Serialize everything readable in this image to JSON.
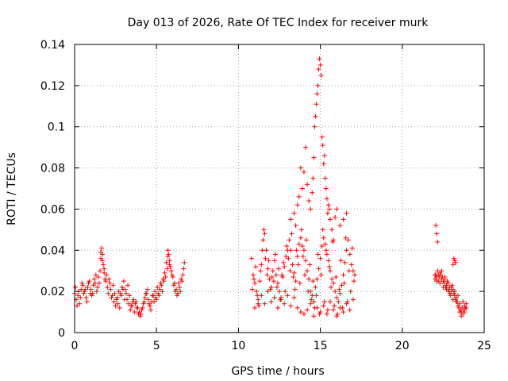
{
  "chart_data": {
    "type": "scatter",
    "title": "Day 013 of 2026, Rate Of TEC Index for receiver murk",
    "xlabel": "GPS time / hours",
    "ylabel": "ROTI / TECUs",
    "xlim": [
      0,
      25
    ],
    "ylim": [
      0,
      0.14
    ],
    "xticks": [
      0,
      5,
      10,
      15,
      20,
      25
    ],
    "yticks": [
      0,
      0.02,
      0.04,
      0.06,
      0.08,
      0.1,
      0.12,
      0.14
    ],
    "xtick_labels": [
      "0",
      "5",
      "10",
      "15",
      "20",
      "25"
    ],
    "ytick_labels": [
      "0",
      "0.02",
      "0.04",
      "0.06",
      "0.08",
      "0.1",
      "0.12",
      "0.14"
    ],
    "grid": true,
    "marker": "+",
    "color": "#ff0000",
    "series": [
      {
        "x": [
          0.0,
          0.1,
          0.2,
          0.3,
          0.4,
          0.5,
          0.6,
          0.7,
          0.8,
          0.9,
          1.0,
          1.1,
          1.2,
          1.3,
          1.4,
          1.5,
          1.6,
          1.65,
          1.7,
          1.75,
          1.8,
          1.9,
          2.0,
          2.1,
          2.2,
          2.3,
          2.4,
          2.5,
          2.6,
          2.7,
          2.8,
          2.9,
          3.0,
          3.1,
          3.2,
          3.3,
          3.4,
          3.5,
          3.6,
          3.7,
          3.8,
          3.9,
          4.0,
          4.1,
          4.2,
          4.3,
          4.4,
          4.5,
          4.6,
          4.7,
          4.8,
          4.9,
          5.0,
          5.1,
          5.2,
          5.3,
          5.4,
          5.5,
          5.6,
          5.7,
          5.75,
          5.8,
          5.9,
          6.0,
          6.1,
          6.2,
          6.3,
          6.4,
          6.5,
          6.6,
          6.7,
          0.05,
          0.15,
          0.25,
          0.35,
          0.45,
          0.55,
          0.65,
          0.75,
          0.85,
          0.95,
          1.05,
          1.15,
          1.25,
          1.35,
          1.45,
          1.55,
          1.6,
          1.7,
          1.8,
          1.85,
          1.95,
          2.05,
          2.15,
          2.25,
          2.35,
          2.45,
          2.55,
          2.65,
          2.75,
          2.85,
          2.95,
          3.05,
          3.15,
          3.25,
          3.35,
          3.45,
          3.55,
          3.65,
          3.75,
          3.85,
          3.95,
          4.05,
          4.15,
          4.25,
          4.35,
          4.45,
          4.55,
          4.65,
          4.75,
          4.85,
          4.95,
          5.05,
          5.15,
          5.25,
          5.35,
          5.45,
          5.55,
          5.65,
          5.7,
          5.8,
          5.85,
          5.95,
          6.05,
          6.15,
          6.25,
          6.35,
          6.45,
          6.55,
          6.65
        ],
        "y": [
          0.019,
          0.016,
          0.018,
          0.014,
          0.021,
          0.023,
          0.02,
          0.017,
          0.022,
          0.025,
          0.021,
          0.019,
          0.026,
          0.028,
          0.022,
          0.024,
          0.036,
          0.041,
          0.038,
          0.033,
          0.029,
          0.025,
          0.022,
          0.026,
          0.021,
          0.018,
          0.015,
          0.013,
          0.017,
          0.02,
          0.019,
          0.022,
          0.025,
          0.021,
          0.016,
          0.014,
          0.011,
          0.013,
          0.016,
          0.014,
          0.012,
          0.009,
          0.008,
          0.011,
          0.014,
          0.017,
          0.019,
          0.016,
          0.013,
          0.015,
          0.018,
          0.02,
          0.016,
          0.019,
          0.021,
          0.023,
          0.026,
          0.029,
          0.034,
          0.04,
          0.038,
          0.035,
          0.03,
          0.027,
          0.024,
          0.021,
          0.019,
          0.022,
          0.026,
          0.028,
          0.034,
          0.022,
          0.013,
          0.02,
          0.017,
          0.024,
          0.019,
          0.021,
          0.015,
          0.024,
          0.019,
          0.018,
          0.023,
          0.024,
          0.02,
          0.027,
          0.03,
          0.039,
          0.035,
          0.031,
          0.026,
          0.028,
          0.019,
          0.024,
          0.017,
          0.023,
          0.019,
          0.016,
          0.014,
          0.012,
          0.018,
          0.021,
          0.016,
          0.019,
          0.023,
          0.018,
          0.013,
          0.015,
          0.01,
          0.015,
          0.012,
          0.01,
          0.009,
          0.012,
          0.015,
          0.019,
          0.021,
          0.014,
          0.011,
          0.018,
          0.015,
          0.017,
          0.022,
          0.018,
          0.024,
          0.02,
          0.025,
          0.027,
          0.031,
          0.037,
          0.033,
          0.032,
          0.028,
          0.023,
          0.02,
          0.018,
          0.024,
          0.02,
          0.025,
          0.031
        ]
      },
      {
        "x": [
          10.8,
          10.9,
          11.0,
          11.1,
          11.2,
          11.3,
          11.4,
          11.5,
          11.6,
          11.7,
          11.8,
          11.9,
          12.0,
          12.1,
          12.2,
          12.3,
          12.4,
          12.5,
          12.6,
          12.7,
          12.8,
          12.9,
          13.0,
          13.1,
          13.2,
          13.3,
          13.4,
          13.5,
          13.6,
          13.7,
          13.8,
          13.9,
          14.0,
          14.1,
          14.2,
          14.3,
          14.4,
          14.5,
          14.6,
          14.7,
          14.8,
          14.9,
          15.0,
          15.1,
          15.2,
          15.3,
          15.4,
          15.5,
          15.6,
          15.7,
          15.8,
          15.9,
          16.0,
          16.1,
          16.2,
          16.3,
          16.4,
          16.5,
          16.6,
          16.7,
          16.8,
          16.9,
          17.0,
          17.1,
          10.85,
          10.95,
          11.05,
          11.15,
          11.25,
          11.35,
          11.45,
          11.55,
          11.65,
          11.75,
          11.85,
          11.95,
          12.05,
          12.15,
          12.25,
          12.35,
          12.45,
          12.55,
          12.65,
          12.75,
          12.85,
          12.95,
          13.05,
          13.15,
          13.25,
          13.35,
          13.45,
          13.55,
          13.65,
          13.75,
          13.85,
          13.95,
          14.05,
          14.15,
          14.25,
          14.35,
          14.45,
          14.55,
          14.65,
          14.75,
          14.85,
          14.95,
          15.05,
          15.15,
          15.25,
          15.35,
          15.45,
          15.55,
          15.65,
          15.75,
          15.85,
          15.95,
          16.05,
          16.15,
          16.25,
          16.35,
          16.45,
          16.55,
          16.65,
          16.75,
          16.85,
          16.95,
          17.05,
          11.0,
          11.2,
          11.4,
          11.6,
          11.8,
          12.0,
          12.2,
          12.4,
          12.6,
          12.8,
          13.0,
          13.2,
          13.4,
          13.6,
          13.8,
          14.0,
          14.2,
          14.4,
          14.6,
          14.8,
          15.0,
          15.2,
          15.4,
          15.6,
          15.8,
          16.0,
          16.2,
          16.4,
          16.6,
          16.8,
          17.0,
          13.2,
          13.4,
          13.5,
          13.6,
          13.7,
          13.8,
          13.9,
          14.0,
          14.1,
          14.2,
          14.3,
          14.4,
          14.5,
          14.55,
          14.6,
          14.65,
          14.7,
          14.75,
          14.8,
          14.85,
          14.9,
          14.95,
          15.0,
          15.05,
          15.1,
          15.15,
          15.2,
          15.25,
          15.3,
          15.35,
          15.4,
          15.45,
          15.5,
          15.55,
          15.6,
          15.7,
          15.8,
          15.9,
          16.0,
          16.2,
          16.4,
          16.6
        ],
        "y": [
          0.036,
          0.028,
          0.024,
          0.02,
          0.014,
          0.025,
          0.033,
          0.045,
          0.048,
          0.04,
          0.031,
          0.026,
          0.022,
          0.03,
          0.035,
          0.028,
          0.024,
          0.02,
          0.017,
          0.027,
          0.032,
          0.037,
          0.04,
          0.045,
          0.04,
          0.033,
          0.029,
          0.025,
          0.037,
          0.043,
          0.046,
          0.042,
          0.04,
          0.035,
          0.03,
          0.026,
          0.02,
          0.018,
          0.015,
          0.022,
          0.026,
          0.031,
          0.036,
          0.042,
          0.046,
          0.043,
          0.038,
          0.035,
          0.03,
          0.026,
          0.024,
          0.02,
          0.017,
          0.015,
          0.019,
          0.023,
          0.028,
          0.034,
          0.04,
          0.045,
          0.038,
          0.033,
          0.03,
          0.028,
          0.021,
          0.026,
          0.032,
          0.018,
          0.013,
          0.03,
          0.04,
          0.05,
          0.036,
          0.028,
          0.035,
          0.021,
          0.027,
          0.025,
          0.038,
          0.022,
          0.031,
          0.016,
          0.028,
          0.034,
          0.02,
          0.042,
          0.036,
          0.03,
          0.048,
          0.027,
          0.021,
          0.04,
          0.033,
          0.024,
          0.05,
          0.037,
          0.028,
          0.045,
          0.02,
          0.033,
          0.016,
          0.025,
          0.012,
          0.018,
          0.038,
          0.009,
          0.028,
          0.05,
          0.015,
          0.04,
          0.011,
          0.032,
          0.022,
          0.044,
          0.013,
          0.027,
          0.009,
          0.021,
          0.035,
          0.012,
          0.024,
          0.046,
          0.015,
          0.03,
          0.02,
          0.041,
          0.025,
          0.012,
          0.016,
          0.018,
          0.014,
          0.02,
          0.015,
          0.017,
          0.012,
          0.016,
          0.014,
          0.018,
          0.013,
          0.017,
          0.012,
          0.01,
          0.009,
          0.011,
          0.014,
          0.008,
          0.012,
          0.01,
          0.013,
          0.009,
          0.015,
          0.011,
          0.008,
          0.012,
          0.01,
          0.014,
          0.011,
          0.016,
          0.055,
          0.058,
          0.052,
          0.062,
          0.066,
          0.08,
          0.07,
          0.078,
          0.09,
          0.072,
          0.064,
          0.06,
          0.068,
          0.075,
          0.085,
          0.1,
          0.105,
          0.111,
          0.116,
          0.12,
          0.128,
          0.133,
          0.13,
          0.125,
          0.095,
          0.091,
          0.082,
          0.086,
          0.075,
          0.07,
          0.065,
          0.058,
          0.062,
          0.06,
          0.055,
          0.05,
          0.045,
          0.056,
          0.06,
          0.052,
          0.055,
          0.058
        ]
      },
      {
        "x": [
          22.0,
          22.05,
          22.1,
          22.15,
          22.2,
          22.25,
          22.3,
          22.35,
          22.4,
          22.45,
          22.5,
          22.55,
          22.6,
          22.65,
          22.7,
          22.75,
          22.8,
          22.85,
          22.9,
          22.95,
          23.0,
          23.05,
          23.1,
          23.15,
          23.2,
          23.25,
          23.3,
          23.35,
          23.4,
          23.45,
          23.5,
          23.55,
          23.6,
          23.65,
          23.7,
          23.75,
          23.8,
          23.85,
          23.9,
          22.0,
          22.1,
          22.2,
          22.3,
          22.4,
          22.5,
          22.6,
          22.7,
          22.8,
          22.9,
          23.0,
          23.1,
          23.2,
          23.3,
          23.4,
          23.5,
          23.6,
          23.7,
          23.8,
          23.9,
          22.05,
          22.1,
          22.15,
          23.1,
          23.15,
          23.2,
          23.25
        ],
        "y": [
          0.026,
          0.028,
          0.027,
          0.03,
          0.025,
          0.027,
          0.029,
          0.028,
          0.026,
          0.027,
          0.025,
          0.024,
          0.026,
          0.022,
          0.023,
          0.025,
          0.021,
          0.02,
          0.022,
          0.018,
          0.02,
          0.023,
          0.021,
          0.019,
          0.018,
          0.016,
          0.017,
          0.015,
          0.013,
          0.012,
          0.014,
          0.011,
          0.01,
          0.012,
          0.009,
          0.011,
          0.013,
          0.012,
          0.014,
          0.028,
          0.025,
          0.028,
          0.024,
          0.03,
          0.022,
          0.027,
          0.021,
          0.024,
          0.019,
          0.022,
          0.016,
          0.02,
          0.015,
          0.018,
          0.01,
          0.008,
          0.015,
          0.01,
          0.012,
          0.052,
          0.048,
          0.044,
          0.033,
          0.036,
          0.035,
          0.034
        ]
      }
    ]
  }
}
